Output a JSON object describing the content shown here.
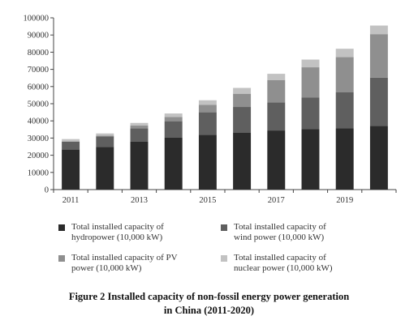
{
  "chart_data": {
    "type": "bar",
    "stacked": true,
    "categories": [
      "2011",
      "2012",
      "2013",
      "2014",
      "2015",
      "2016",
      "2017",
      "2018",
      "2019",
      "2020"
    ],
    "x_tick_labels": [
      "2011",
      "2013",
      "2015",
      "2017",
      "2019"
    ],
    "y_tick_labels": [
      "0",
      "10000",
      "20000",
      "30000",
      "40000",
      "50000",
      "60000",
      "70000",
      "80000",
      "90000",
      "100000"
    ],
    "ylim": [
      0,
      100000
    ],
    "grid": false,
    "legend_position": "bottom",
    "series": [
      {
        "name": "Total installed capacity of hydropower (10,000 kW)",
        "color": "#2b2b2b",
        "values": [
          23300,
          24900,
          28000,
          30200,
          31900,
          33200,
          34400,
          35300,
          35600,
          37000
        ]
      },
      {
        "name": "Total installed capacity of wind power (10,000 kW)",
        "color": "#5f5f5f",
        "values": [
          4600,
          6100,
          7700,
          9600,
          13100,
          14900,
          16400,
          18400,
          21000,
          28200
        ]
      },
      {
        "name": "Total installed capacity of PV power (10,000 kW)",
        "color": "#8f8f8f",
        "values": [
          200,
          400,
          1600,
          2500,
          4300,
          7700,
          13000,
          17500,
          20500,
          25300
        ]
      },
      {
        "name": "Total installed capacity of nuclear power (10,000 kW)",
        "color": "#c2c2c2",
        "values": [
          1300,
          1300,
          1500,
          2000,
          2700,
          3400,
          3600,
          4500,
          4900,
          5000
        ]
      }
    ],
    "caption": "Figure 2    Installed capacity of non-fossil energy power generation in China (2011-2020)",
    "caption_lines": [
      "Figure 2    Installed capacity of non-fossil energy power generation",
      "in China (2011-2020)"
    ]
  }
}
